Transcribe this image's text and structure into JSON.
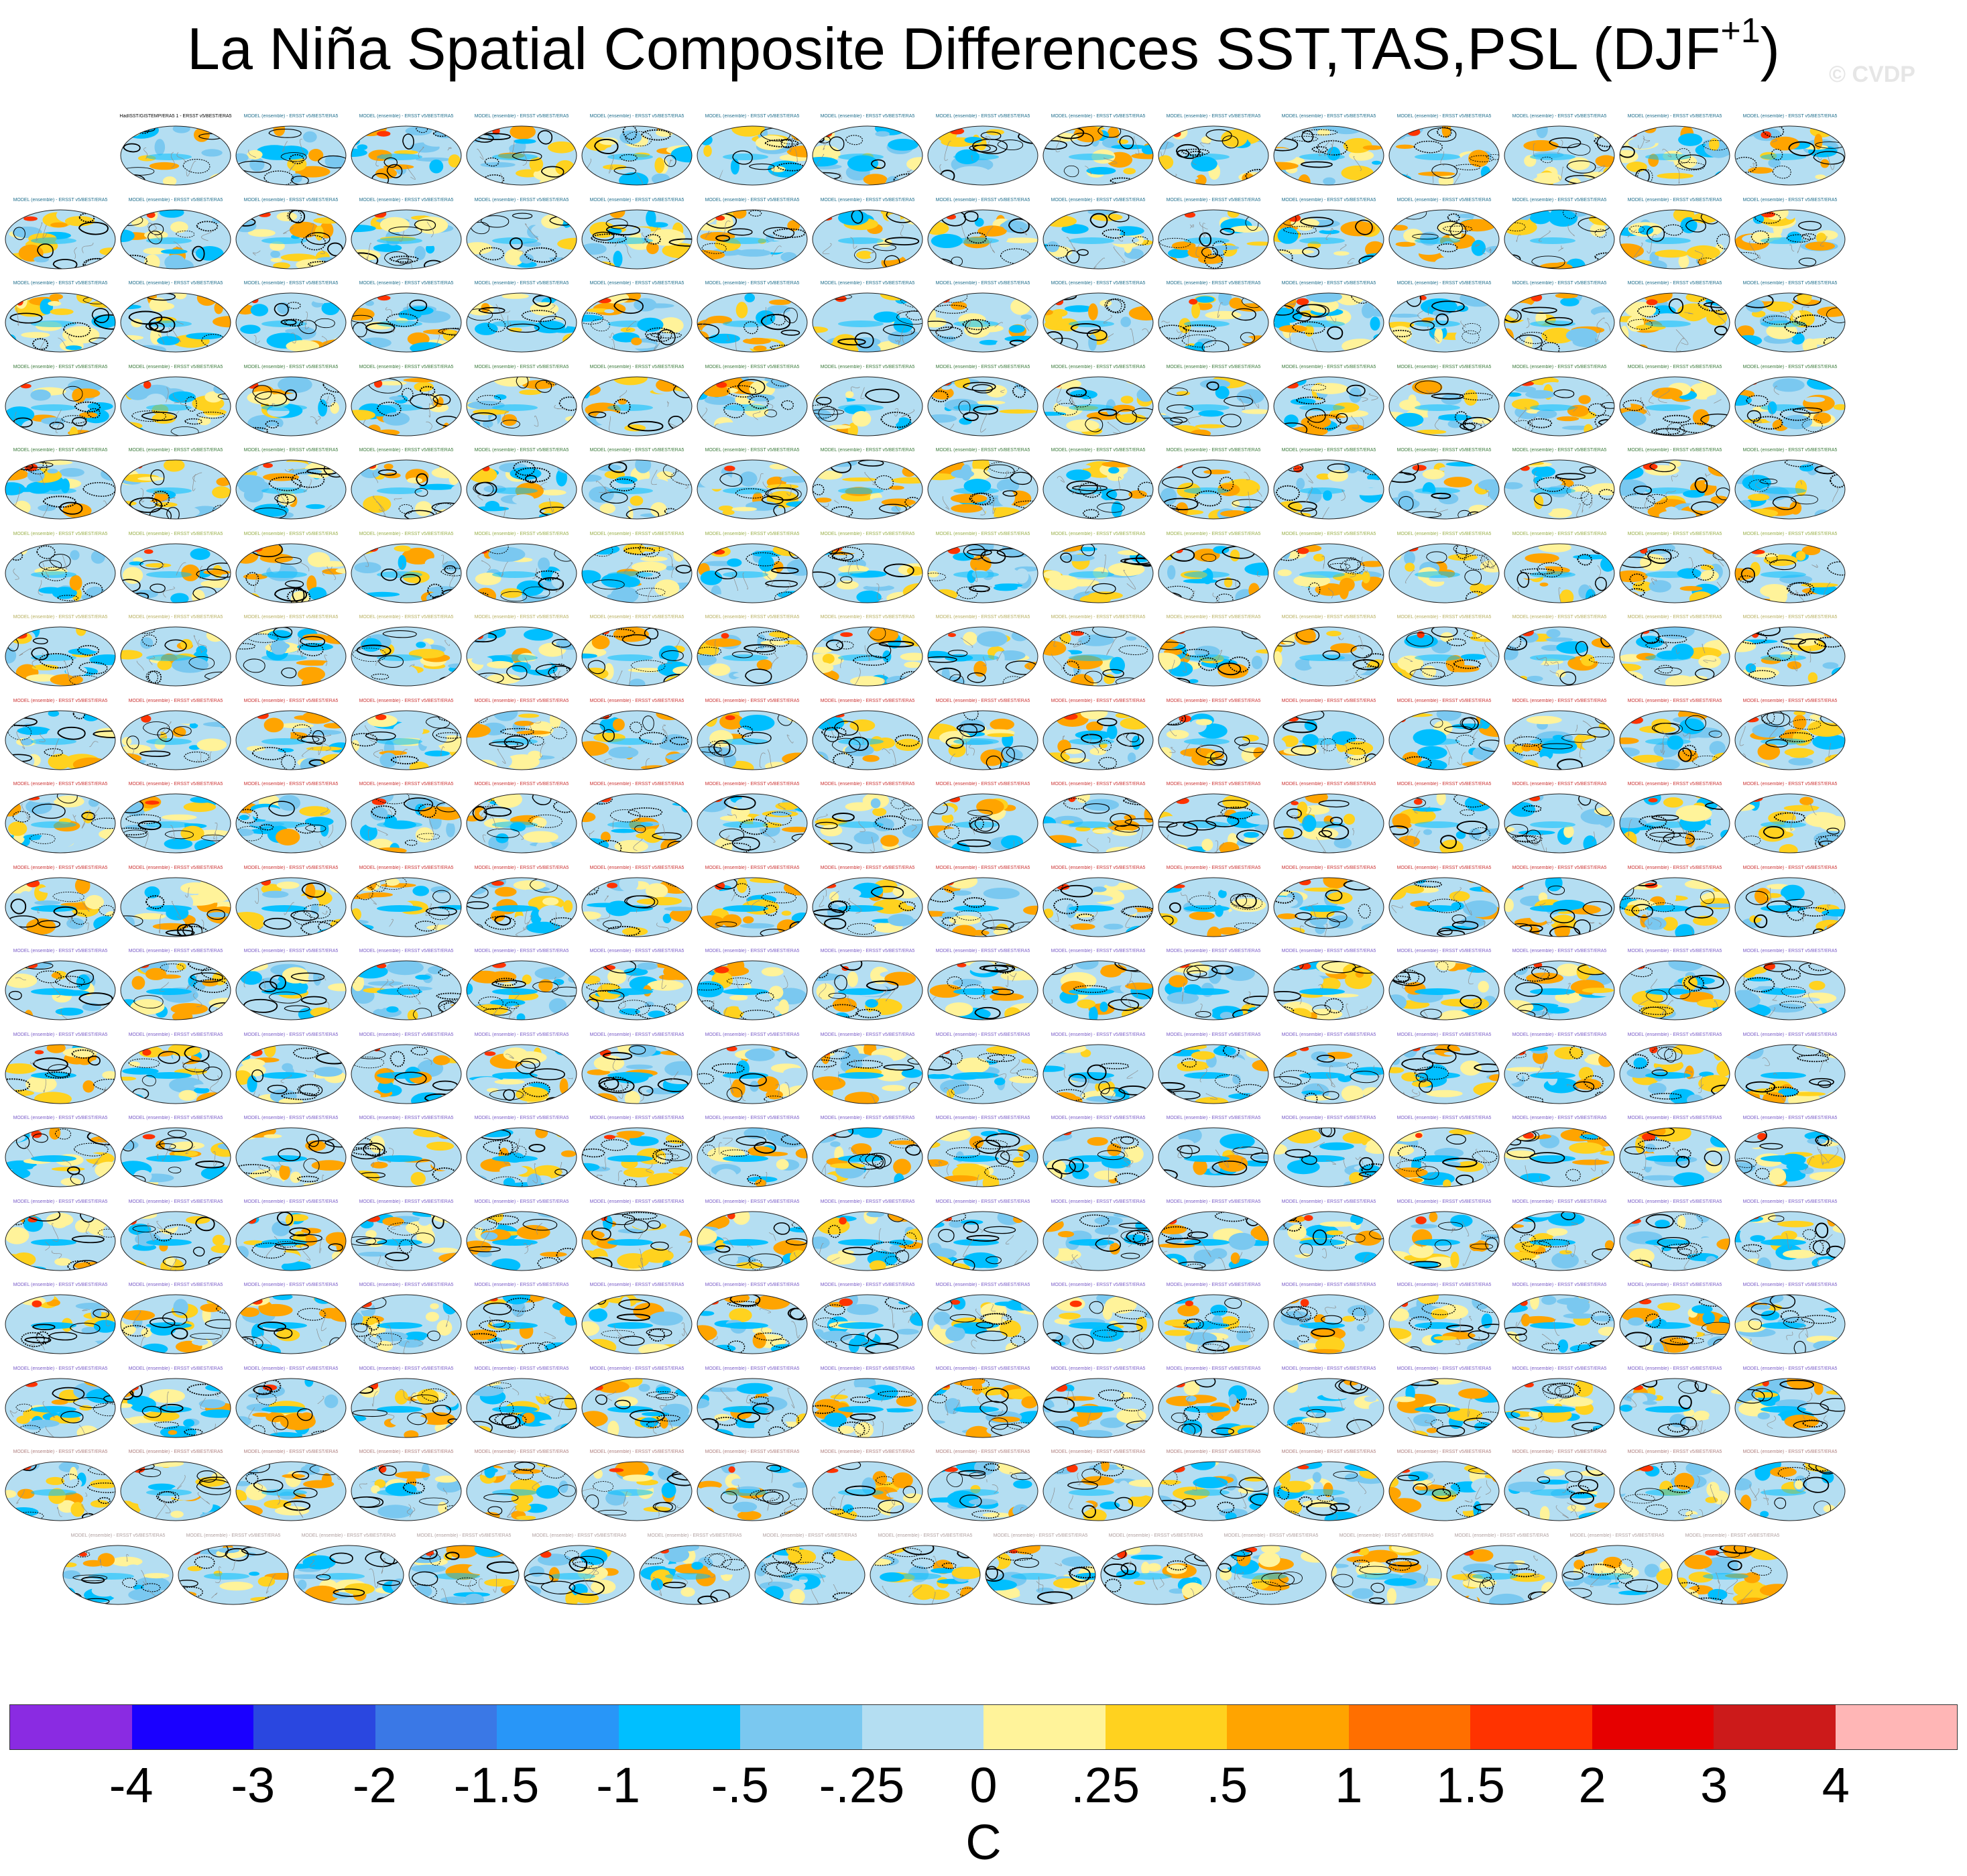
{
  "figure": {
    "title": "La Niña Spatial Composite Differences SST,TAS,PSL (DJF",
    "title_superscript": "+1",
    "title_close": ")",
    "watermark": "© CVDP"
  },
  "chart_data": {
    "type": "heatmap",
    "description_kind": "panel-grid",
    "rows": 18,
    "columns": 16,
    "panel_counts_per_row": [
      15,
      16,
      16,
      16,
      16,
      16,
      16,
      16,
      16,
      16,
      16,
      16,
      16,
      16,
      16,
      16,
      16,
      15
    ],
    "obs_panel_label": "HadISST/GISTEMP/ERA5 1 - ERSST v5/BEST/ERA5",
    "panel_title_template": "MODEL (ensemble) - ERSST v5/BEST/ERA5",
    "colorbar": {
      "levels": [
        "-4",
        "-3",
        "-2",
        "-1.5",
        "-1",
        "-.5",
        "-.25",
        "0",
        ".25",
        ".5",
        "1",
        "1.5",
        "2",
        "3",
        "4"
      ],
      "colors": [
        "#8a2be2",
        "#1a00ff",
        "#2a47e0",
        "#3a78e6",
        "#2896f8",
        "#00bfff",
        "#7ac8f0",
        "#b4def2",
        "#fff39a",
        "#ffd21f",
        "#ffa400",
        "#ff6f00",
        "#ff3300",
        "#e60000",
        "#cc1a1a",
        "#ffb6b6"
      ],
      "units": "C"
    }
  }
}
